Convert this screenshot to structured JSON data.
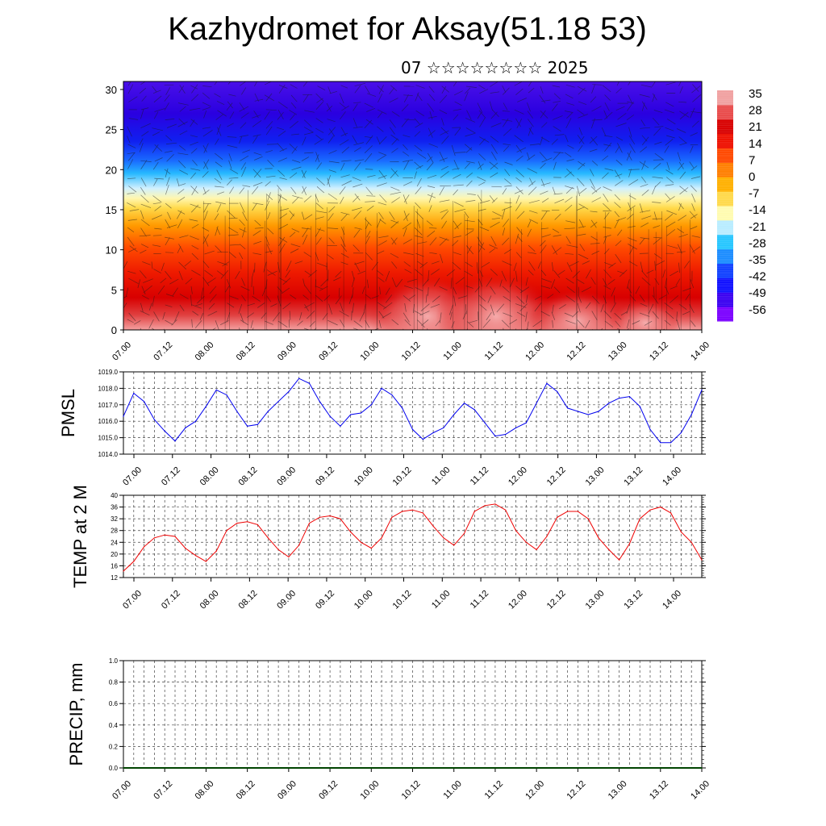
{
  "title": "Kazhydromet for Aksay(51.18 53)",
  "subtitle": "07 ☆☆☆☆☆☆☆☆ 2025",
  "colors": {
    "pmsl_line": "#0000ee",
    "temp_line": "#ee0000",
    "precip_line": "#004400",
    "colorbar": [
      "#7a00ff",
      "#3a00f0",
      "#1010ff",
      "#1040ff",
      "#1a8cff",
      "#26c6ff",
      "#b8ecff",
      "#fffbb0",
      "#ffd94a",
      "#ffb000",
      "#ff7e00",
      "#ff4800",
      "#ee1000",
      "#d80000",
      "#e84a4a",
      "#f0a0a0"
    ]
  },
  "chart_data": [
    {
      "type": "heatmap",
      "title": "",
      "xlabel": "",
      "ylabel": "",
      "x_ticks": [
        "07.00",
        "07.12",
        "08.00",
        "08.12",
        "09.00",
        "09.12",
        "10.00",
        "10.12",
        "11.00",
        "11.12",
        "12.00",
        "12.12",
        "13.00",
        "13.12",
        "14.00"
      ],
      "y_ticks": [
        "0",
        "5",
        "10",
        "15",
        "20",
        "25",
        "30"
      ],
      "ylim": [
        0,
        31
      ],
      "colorbar_labels": [
        "35",
        "28",
        "21",
        "14",
        "7",
        "0",
        "-7",
        "-14",
        "-21",
        "-28",
        "-35",
        "-42",
        "-49",
        "-56"
      ],
      "overlay": "wind barbs"
    },
    {
      "type": "line",
      "ylabel": "PMSL",
      "ylim": [
        1014.0,
        1019.0
      ],
      "y_ticks": [
        "1014.0",
        "1015.0",
        "1016.0",
        "1017.0",
        "1018.0",
        "1019.0"
      ],
      "x_ticks": [
        "07.00",
        "07.12",
        "08.00",
        "08.12",
        "09.00",
        "09.12",
        "10.00",
        "10.12",
        "11.00",
        "11.12",
        "12.00",
        "12.12",
        "13.00",
        "13.12",
        "14.00"
      ],
      "grid": true,
      "x": [
        0,
        3,
        6,
        9,
        12,
        15,
        18,
        21,
        24,
        27,
        30,
        33,
        36,
        39,
        42,
        45,
        48,
        51,
        54,
        57,
        60,
        63,
        66,
        69,
        72,
        75,
        78,
        81,
        84,
        87,
        90,
        93,
        96,
        99,
        102,
        105,
        108,
        111,
        114,
        117,
        120,
        123,
        126,
        129,
        132,
        135,
        138,
        141,
        144,
        147,
        150,
        153,
        156,
        159,
        162,
        165,
        168
      ],
      "values": [
        1016.3,
        1017.7,
        1017.2,
        1016.1,
        1015.4,
        1014.8,
        1015.6,
        1016.0,
        1016.9,
        1017.9,
        1017.6,
        1016.6,
        1015.7,
        1015.8,
        1016.6,
        1017.2,
        1017.8,
        1018.6,
        1018.3,
        1017.2,
        1016.3,
        1015.7,
        1016.4,
        1016.5,
        1017.0,
        1018.0,
        1017.6,
        1016.8,
        1015.5,
        1014.9,
        1015.3,
        1015.6,
        1016.4,
        1017.1,
        1016.7,
        1015.9,
        1015.1,
        1015.2,
        1015.6,
        1015.9,
        1017.1,
        1018.3,
        1017.8,
        1016.8,
        1016.6,
        1016.4,
        1016.6,
        1017.1,
        1017.4,
        1017.5,
        1016.9,
        1015.5,
        1014.7,
        1014.7,
        1015.3,
        1016.4,
        1017.9
      ]
    },
    {
      "type": "line",
      "ylabel": "TEMP at 2 M",
      "ylim": [
        12,
        40
      ],
      "y_ticks": [
        "12",
        "16",
        "20",
        "24",
        "28",
        "32",
        "36",
        "40"
      ],
      "x_ticks": [
        "07.00",
        "07.12",
        "08.00",
        "08.12",
        "09.00",
        "09.12",
        "10.00",
        "10.12",
        "11.00",
        "11.12",
        "12.00",
        "12.12",
        "13.00",
        "13.12",
        "14.00"
      ],
      "grid": true,
      "x": [
        0,
        3,
        6,
        9,
        12,
        15,
        18,
        21,
        24,
        27,
        30,
        33,
        36,
        39,
        42,
        45,
        48,
        51,
        54,
        57,
        60,
        63,
        66,
        69,
        72,
        75,
        78,
        81,
        84,
        87,
        90,
        93,
        96,
        99,
        102,
        105,
        108,
        111,
        114,
        117,
        120,
        123,
        126,
        129,
        132,
        135,
        138,
        141,
        144,
        147,
        150,
        153,
        156,
        159,
        162,
        165,
        168
      ],
      "values": [
        14.2,
        17.5,
        22.5,
        25.5,
        26.5,
        26.0,
        22.0,
        19.5,
        17.5,
        21.0,
        28.0,
        30.5,
        31.0,
        30.0,
        25.5,
        21.5,
        19.0,
        23.0,
        30.5,
        32.5,
        33.0,
        32.0,
        27.5,
        24.0,
        22.0,
        25.5,
        32.5,
        34.5,
        35.0,
        34.0,
        29.5,
        25.5,
        23.0,
        27.0,
        34.5,
        36.5,
        37.0,
        35.0,
        28.0,
        24.0,
        21.5,
        26.0,
        32.5,
        34.5,
        34.5,
        32.0,
        25.5,
        21.5,
        18.0,
        23.5,
        32.0,
        35.0,
        36.0,
        34.0,
        27.5,
        24.0,
        18.0
      ]
    },
    {
      "type": "line",
      "ylabel": "PRECIP, mm",
      "ylim": [
        0.0,
        1.0
      ],
      "y_ticks": [
        "0.0",
        "0.2",
        "0.4",
        "0.6",
        "0.8",
        "1.0"
      ],
      "x_ticks": [
        "07.00",
        "07.12",
        "08.00",
        "08.12",
        "09.00",
        "09.12",
        "10.00",
        "10.12",
        "11.00",
        "11.12",
        "12.00",
        "12.12",
        "13.00",
        "13.12",
        "14.00"
      ],
      "grid": true,
      "x": [
        0,
        168
      ],
      "values": [
        0.0,
        0.0
      ]
    }
  ]
}
